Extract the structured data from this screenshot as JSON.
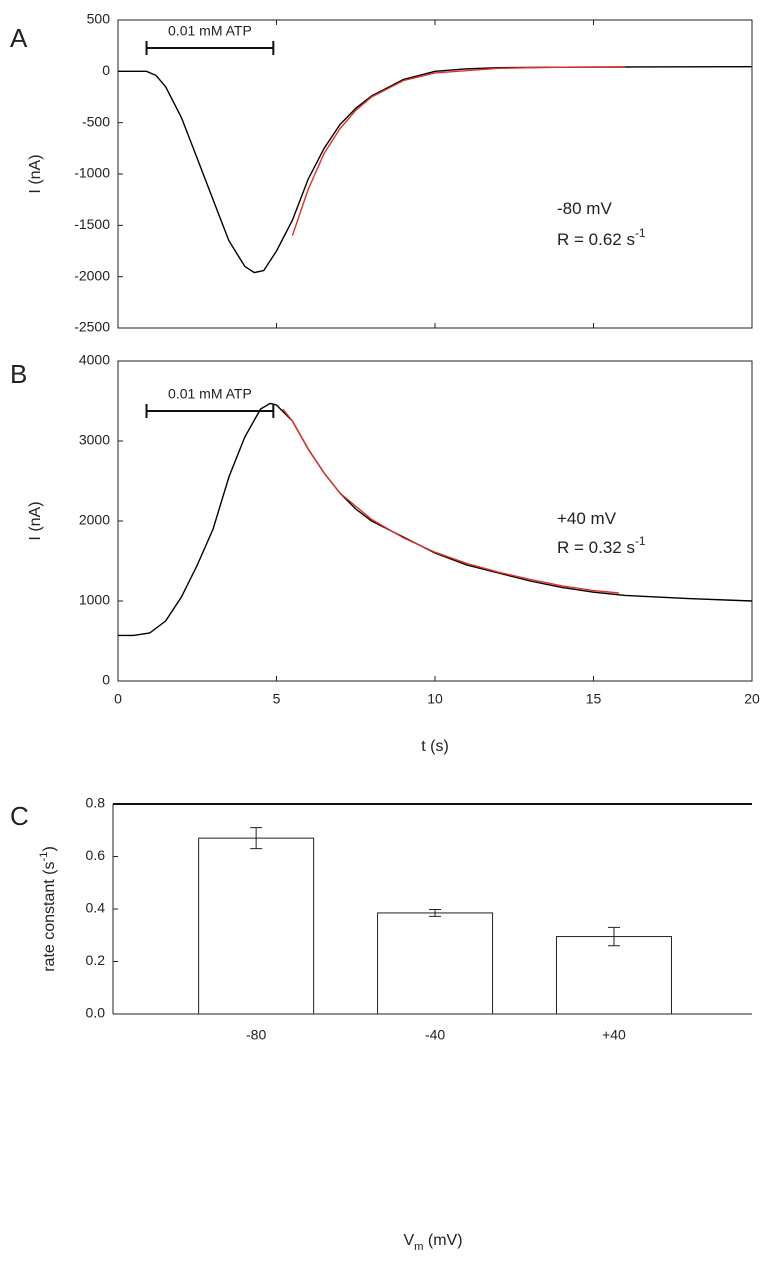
{
  "chart_data": [
    {
      "type": "line",
      "panel": "A",
      "xlim": [
        0,
        20
      ],
      "xticks": [
        0,
        5,
        10,
        15,
        20
      ],
      "x_tick_labels": false,
      "ylim": [
        -2500,
        500
      ],
      "yticks": [
        -2500,
        -2000,
        -1500,
        -1000,
        -500,
        0,
        500
      ],
      "ylabel": "I (nA)",
      "stimulus": {
        "label": "0.01 mM ATP",
        "start": 0.9,
        "end": 4.9
      },
      "annotations": [
        {
          "text": "-80 mV"
        },
        {
          "text": "R = 0.62 s",
          "sup": "-1"
        }
      ],
      "series": [
        {
          "color": "#000000",
          "x": [
            0,
            0.5,
            0.9,
            1.2,
            1.5,
            2,
            2.5,
            3,
            3.5,
            4,
            4.3,
            4.6,
            5,
            5.5,
            6,
            6.5,
            7,
            7.5,
            8,
            9,
            10,
            11,
            12,
            14,
            16,
            18,
            20
          ],
          "values": [
            0,
            0,
            0,
            -40,
            -150,
            -450,
            -850,
            -1250,
            -1650,
            -1900,
            -1960,
            -1940,
            -1750,
            -1450,
            -1050,
            -750,
            -520,
            -360,
            -240,
            -80,
            0,
            25,
            35,
            40,
            42,
            44,
            45
          ]
        },
        {
          "color": "#e0302a",
          "x": [
            5.5,
            6,
            6.5,
            7,
            7.5,
            8,
            9,
            10,
            12,
            14,
            16
          ],
          "values": [
            -1600,
            -1150,
            -800,
            -560,
            -380,
            -250,
            -90,
            -15,
            30,
            40,
            42
          ]
        }
      ]
    },
    {
      "type": "line",
      "panel": "B",
      "xlim": [
        0,
        20
      ],
      "xticks": [
        0,
        5,
        10,
        15,
        20
      ],
      "x_tick_labels": true,
      "ylim": [
        0,
        4000
      ],
      "yticks": [
        0,
        1000,
        2000,
        3000,
        4000
      ],
      "ylabel": "I (nA)",
      "xlabel": "t (s)",
      "stimulus": {
        "label": "0.01 mM ATP",
        "start": 0.9,
        "end": 4.9
      },
      "annotations": [
        {
          "text": "+40 mV"
        },
        {
          "text": "R = 0.32 s",
          "sup": "-1"
        }
      ],
      "series": [
        {
          "color": "#000000",
          "x": [
            0,
            0.5,
            1,
            1.5,
            2,
            2.5,
            3,
            3.5,
            4,
            4.5,
            4.8,
            5,
            5.5,
            6,
            6.5,
            7,
            7.5,
            8,
            9,
            10,
            11,
            12,
            13,
            14,
            15,
            16,
            18,
            20
          ],
          "values": [
            570,
            570,
            600,
            750,
            1050,
            1450,
            1900,
            2550,
            3050,
            3400,
            3470,
            3450,
            3250,
            2900,
            2600,
            2350,
            2150,
            2000,
            1800,
            1600,
            1450,
            1350,
            1250,
            1170,
            1110,
            1070,
            1030,
            1000
          ]
        },
        {
          "color": "#e0302a",
          "x": [
            5.2,
            5.5,
            6,
            6.5,
            7,
            8,
            9,
            10,
            11,
            12,
            13,
            14,
            15,
            15.8
          ],
          "values": [
            3400,
            3250,
            2900,
            2600,
            2350,
            2020,
            1790,
            1610,
            1470,
            1360,
            1270,
            1190,
            1130,
            1100
          ]
        }
      ]
    },
    {
      "type": "bar",
      "panel": "C",
      "categories": [
        "-80",
        "-40",
        "+40"
      ],
      "values": [
        0.67,
        0.385,
        0.295
      ],
      "errors": [
        0.04,
        0.013,
        0.035
      ],
      "color": "#ffffff",
      "ylim": [
        0,
        0.8
      ],
      "yticks": [
        {
          "value": 0,
          "label": "0.0"
        },
        0.2,
        0.4,
        0.6,
        0.8
      ],
      "ylabel": {
        "text": "rate constant (s",
        "sup": "-1",
        "tail": ")"
      },
      "xlabel": {
        "text": "V",
        "sub": "m",
        "tail": " (mV)"
      }
    }
  ]
}
